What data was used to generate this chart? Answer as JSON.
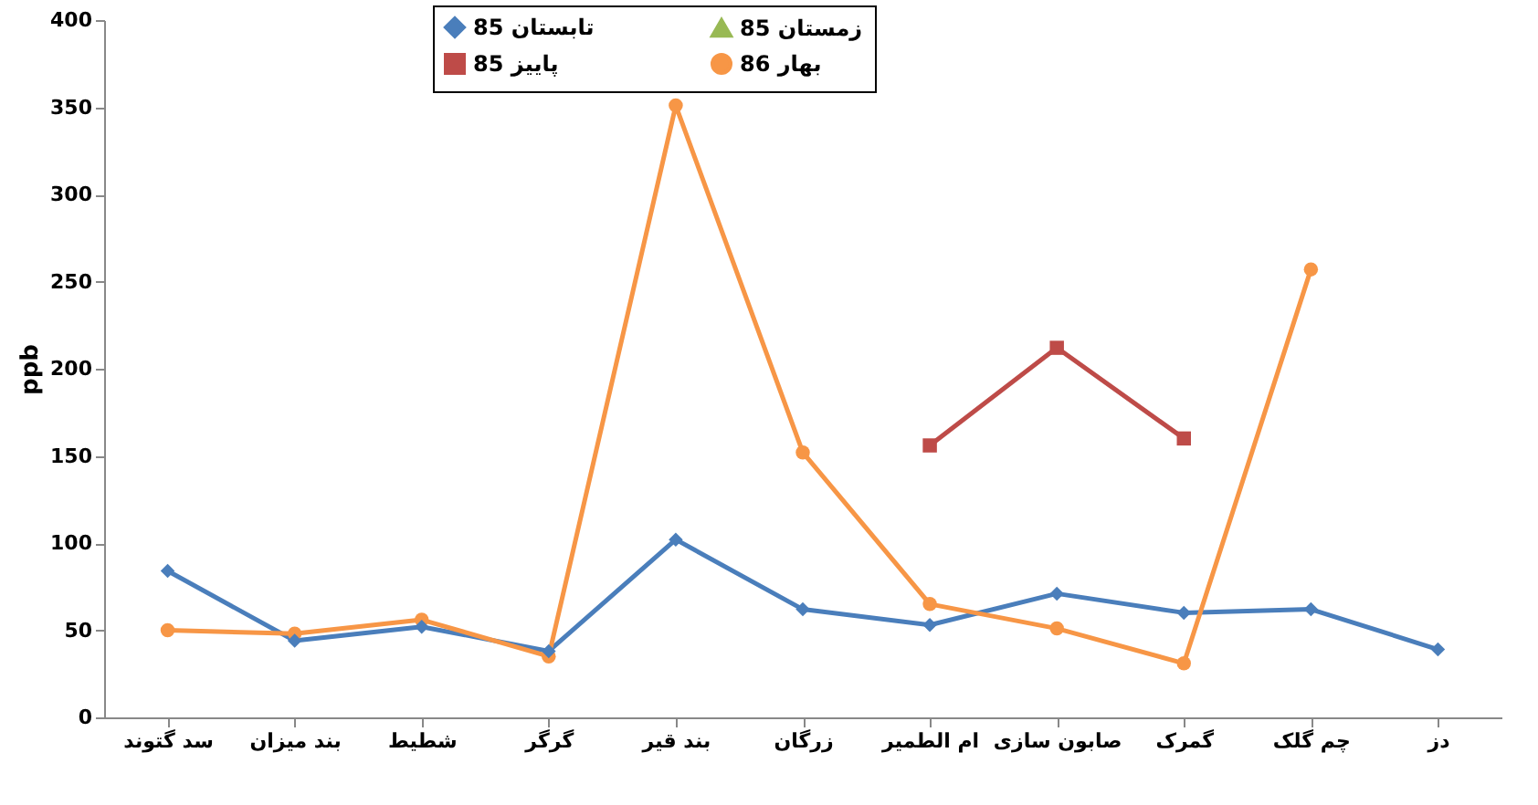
{
  "chart_data": {
    "type": "line",
    "ylabel": "ppb",
    "categories": [
      "سد گتوند",
      "بند میزان",
      "شطیط",
      "گرگر",
      "بند قیر",
      "زرگان",
      "ام الطمیر",
      "صابون سازی",
      "گمرک",
      "چم گلک",
      "دز"
    ],
    "series": [
      {
        "name": "تابستان 85",
        "color": "#4a7ebb",
        "marker": "diamond",
        "values": [
          84,
          44,
          52,
          38,
          102,
          62,
          53,
          71,
          60,
          62,
          39
        ]
      },
      {
        "name": "پاییز 85",
        "color": "#be4b48",
        "marker": "square",
        "values": [
          null,
          null,
          null,
          null,
          null,
          null,
          156,
          212,
          160,
          null,
          null
        ]
      },
      {
        "name": "زمستان 85",
        "color": "#98b954",
        "marker": "triangle",
        "values": [
          null,
          null,
          null,
          null,
          null,
          null,
          null,
          null,
          null,
          null,
          null
        ]
      },
      {
        "name": "بهار 86",
        "color": "#f79646",
        "marker": "circle",
        "values": [
          50,
          48,
          56,
          35,
          351,
          152,
          65,
          51,
          31,
          257,
          null
        ]
      }
    ],
    "ylim": [
      0,
      400
    ],
    "yticks": [
      0,
      50,
      100,
      150,
      200,
      250,
      300,
      350,
      400
    ],
    "grid": false,
    "legend": "top",
    "line_style": "solid"
  }
}
